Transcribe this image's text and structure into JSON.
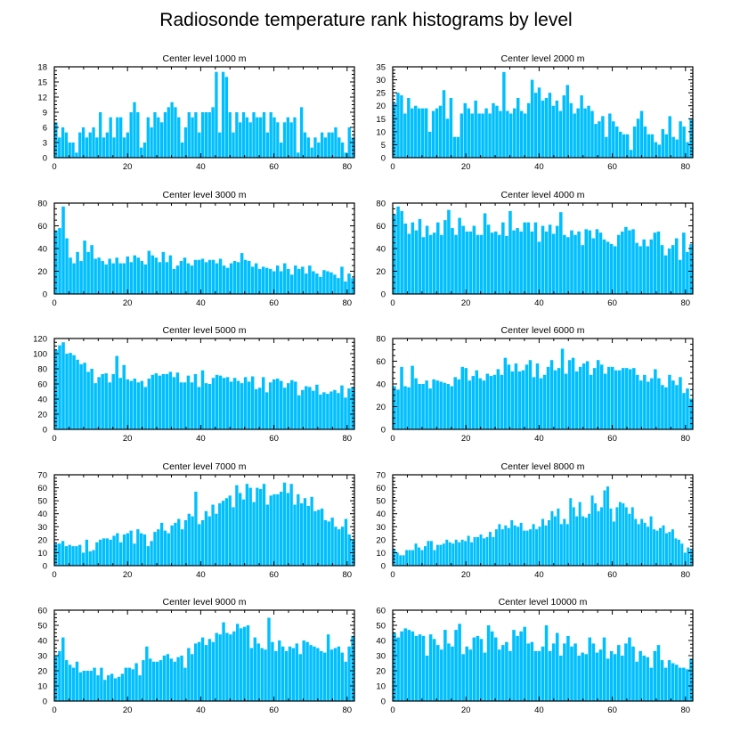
{
  "figure_title": "Radiosonde temperature rank histograms by level",
  "colors": {
    "bar_fill": "#00BFFF",
    "bar_edge": "#1a9fd6",
    "axis": "#000000",
    "background": "#ffffff"
  },
  "chart_data": [
    {
      "type": "bar",
      "title": "Center level 1000 m",
      "xlim": [
        0,
        82
      ],
      "ylim": [
        0,
        18
      ],
      "xticks": [
        0,
        20,
        40,
        60,
        80
      ],
      "yticks": [
        0,
        3,
        6,
        9,
        12,
        15,
        18
      ],
      "values": [
        7,
        4,
        6,
        5,
        3,
        3,
        1,
        5,
        6,
        4,
        5,
        6,
        4,
        9,
        4,
        5,
        8,
        4,
        8,
        8,
        4,
        5,
        9,
        11,
        9,
        2,
        3,
        8,
        6,
        9,
        8,
        7,
        9,
        10,
        11,
        10,
        8,
        3,
        6,
        9,
        8,
        9,
        5,
        9,
        9,
        9,
        10,
        17,
        5,
        17,
        16,
        9,
        5,
        9,
        7,
        9,
        8,
        7,
        9,
        8,
        8,
        9,
        5,
        9,
        8,
        7,
        3,
        7,
        8,
        7,
        8,
        1,
        10,
        5,
        4,
        2,
        4,
        3,
        5,
        4,
        5,
        5,
        6,
        4,
        3,
        1,
        6,
        4
      ],
      "xlabel": "",
      "ylabel": ""
    },
    {
      "type": "bar",
      "title": "Center level 2000 m",
      "xlim": [
        0,
        82
      ],
      "ylim": [
        0,
        35
      ],
      "xticks": [
        0,
        20,
        40,
        60,
        80
      ],
      "yticks": [
        0,
        5,
        10,
        15,
        20,
        25,
        30,
        35
      ],
      "values": [
        21,
        25,
        24,
        17,
        23,
        19,
        20,
        19,
        19,
        19,
        10,
        18,
        19,
        20,
        26,
        15,
        23,
        8,
        8,
        17,
        21,
        19,
        17,
        22,
        17,
        17,
        19,
        17,
        21,
        20,
        18,
        33,
        18,
        17,
        19,
        23,
        18,
        17,
        21,
        30,
        25,
        27,
        22,
        23,
        25,
        20,
        22,
        18,
        24,
        28,
        21,
        17,
        19,
        24,
        19,
        20,
        18,
        13,
        14,
        16,
        8,
        17,
        14,
        12,
        10,
        9,
        9,
        3,
        12,
        15,
        18,
        12,
        9,
        9,
        6,
        5,
        11,
        9,
        16,
        8,
        7,
        14,
        12,
        6,
        15
      ],
      "xlabel": "",
      "ylabel": ""
    },
    {
      "type": "bar",
      "title": "Center level 3000 m",
      "xlim": [
        0,
        82
      ],
      "ylim": [
        0,
        80
      ],
      "xticks": [
        0,
        20,
        40,
        60,
        80
      ],
      "yticks": [
        0,
        20,
        40,
        60,
        80
      ],
      "values": [
        56,
        58,
        77,
        49,
        32,
        27,
        37,
        29,
        47,
        37,
        43,
        31,
        32,
        29,
        26,
        31,
        27,
        32,
        27,
        27,
        33,
        28,
        34,
        32,
        29,
        26,
        38,
        34,
        32,
        28,
        37,
        28,
        34,
        22,
        25,
        29,
        32,
        27,
        25,
        30,
        30,
        31,
        28,
        30,
        30,
        27,
        31,
        25,
        23,
        27,
        29,
        28,
        36,
        30,
        29,
        24,
        27,
        22,
        24,
        23,
        22,
        20,
        25,
        20,
        27,
        22,
        17,
        25,
        22,
        24,
        18,
        25,
        20,
        18,
        15,
        21,
        20,
        19,
        17,
        14,
        24,
        11,
        18,
        14
      ],
      "xlabel": "",
      "ylabel": ""
    },
    {
      "type": "bar",
      "title": "Center level 4000 m",
      "xlim": [
        0,
        82
      ],
      "ylim": [
        0,
        80
      ],
      "xticks": [
        0,
        20,
        40,
        60,
        80
      ],
      "yticks": [
        0,
        20,
        40,
        60,
        80
      ],
      "values": [
        70,
        77,
        73,
        62,
        53,
        63,
        56,
        66,
        50,
        60,
        52,
        54,
        63,
        52,
        65,
        74,
        58,
        52,
        67,
        60,
        55,
        55,
        60,
        52,
        52,
        71,
        61,
        54,
        55,
        52,
        63,
        51,
        73,
        56,
        58,
        55,
        63,
        63,
        55,
        63,
        46,
        60,
        55,
        61,
        53,
        60,
        72,
        52,
        50,
        56,
        52,
        55,
        43,
        57,
        56,
        49,
        57,
        54,
        48,
        46,
        44,
        42,
        52,
        55,
        59,
        56,
        57,
        45,
        42,
        48,
        42,
        48,
        54,
        55,
        43,
        34,
        40,
        43,
        49,
        30,
        54,
        37,
        44
      ],
      "xlabel": "",
      "ylabel": ""
    },
    {
      "type": "bar",
      "title": "Center level 5000 m",
      "xlim": [
        0,
        82
      ],
      "ylim": [
        0,
        120
      ],
      "xticks": [
        0,
        20,
        40,
        60,
        80
      ],
      "yticks": [
        0,
        20,
        40,
        60,
        80,
        100,
        120
      ],
      "values": [
        105,
        111,
        115,
        100,
        101,
        98,
        92,
        86,
        88,
        76,
        80,
        61,
        69,
        73,
        74,
        62,
        73,
        97,
        68,
        85,
        66,
        64,
        67,
        62,
        64,
        56,
        67,
        72,
        74,
        71,
        73,
        73,
        76,
        69,
        75,
        62,
        62,
        71,
        62,
        73,
        56,
        78,
        61,
        60,
        68,
        72,
        71,
        68,
        69,
        63,
        68,
        64,
        61,
        69,
        63,
        70,
        53,
        55,
        69,
        49,
        62,
        66,
        67,
        64,
        55,
        61,
        65,
        63,
        45,
        52,
        57,
        56,
        51,
        59,
        46,
        49,
        47,
        50,
        52,
        48,
        58,
        42,
        54,
        56
      ],
      "xlabel": "",
      "ylabel": ""
    },
    {
      "type": "bar",
      "title": "Center level 6000 m",
      "xlim": [
        0,
        82
      ],
      "ylim": [
        0,
        80
      ],
      "xticks": [
        0,
        20,
        40,
        60,
        80
      ],
      "yticks": [
        0,
        20,
        40,
        60,
        80
      ],
      "values": [
        38,
        35,
        55,
        38,
        37,
        56,
        45,
        40,
        40,
        43,
        36,
        44,
        43,
        42,
        41,
        40,
        38,
        46,
        44,
        55,
        54,
        43,
        47,
        52,
        45,
        43,
        49,
        47,
        48,
        53,
        48,
        63,
        57,
        51,
        58,
        51,
        52,
        57,
        61,
        46,
        58,
        45,
        48,
        55,
        61,
        52,
        54,
        71,
        49,
        61,
        63,
        51,
        55,
        58,
        60,
        48,
        54,
        61,
        57,
        49,
        55,
        55,
        52,
        52,
        54,
        54,
        53,
        54,
        48,
        43,
        48,
        42,
        45,
        53,
        45,
        39,
        37,
        48,
        43,
        39,
        46,
        32,
        36,
        27
      ],
      "xlabel": "",
      "ylabel": ""
    },
    {
      "type": "bar",
      "title": "Center level 7000 m",
      "xlim": [
        0,
        82
      ],
      "ylim": [
        0,
        70
      ],
      "xticks": [
        0,
        20,
        40,
        60,
        80
      ],
      "yticks": [
        0,
        10,
        20,
        30,
        40,
        50,
        60,
        70
      ],
      "values": [
        17,
        17,
        19,
        15,
        16,
        15,
        15,
        16,
        10,
        20,
        11,
        12,
        18,
        20,
        21,
        21,
        20,
        23,
        25,
        18,
        24,
        25,
        27,
        17,
        28,
        25,
        24,
        15,
        19,
        26,
        28,
        33,
        27,
        25,
        31,
        33,
        36,
        28,
        35,
        40,
        38,
        57,
        32,
        35,
        42,
        38,
        47,
        40,
        48,
        50,
        52,
        54,
        45,
        62,
        56,
        51,
        63,
        60,
        49,
        60,
        59,
        63,
        47,
        54,
        55,
        55,
        57,
        64,
        56,
        63,
        47,
        55,
        48,
        52,
        46,
        53,
        42,
        43,
        44,
        35,
        34,
        37,
        30,
        28,
        30,
        36,
        24,
        20
      ],
      "xlabel": "",
      "ylabel": ""
    },
    {
      "type": "bar",
      "title": "Center level 8000 m",
      "xlim": [
        0,
        82
      ],
      "ylim": [
        0,
        70
      ],
      "xticks": [
        0,
        20,
        40,
        60,
        80
      ],
      "yticks": [
        0,
        10,
        20,
        30,
        40,
        50,
        60,
        70
      ],
      "values": [
        13,
        10,
        8,
        8,
        12,
        12,
        12,
        17,
        14,
        12,
        15,
        19,
        19,
        12,
        16,
        16,
        17,
        20,
        18,
        17,
        20,
        18,
        20,
        19,
        23,
        18,
        22,
        22,
        24,
        21,
        22,
        26,
        22,
        28,
        32,
        28,
        31,
        29,
        35,
        31,
        30,
        33,
        27,
        27,
        28,
        32,
        28,
        30,
        36,
        31,
        35,
        42,
        38,
        44,
        32,
        36,
        32,
        52,
        45,
        38,
        49,
        38,
        37,
        40,
        54,
        48,
        42,
        45,
        58,
        61,
        44,
        34,
        45,
        49,
        48,
        45,
        40,
        45,
        36,
        32,
        36,
        33,
        30,
        38,
        28,
        27,
        29,
        31,
        25,
        26,
        28,
        21,
        20,
        17,
        10,
        14,
        12
      ],
      "xlabel": "",
      "ylabel": ""
    },
    {
      "type": "bar",
      "title": "Center level 9000 m",
      "xlim": [
        0,
        82
      ],
      "ylim": [
        0,
        60
      ],
      "xticks": [
        0,
        20,
        40,
        60,
        80
      ],
      "yticks": [
        0,
        10,
        20,
        30,
        40,
        50,
        60
      ],
      "values": [
        30,
        33,
        42,
        27,
        24,
        22,
        26,
        19,
        20,
        20,
        20,
        22,
        17,
        22,
        14,
        17,
        18,
        15,
        16,
        18,
        22,
        22,
        21,
        25,
        17,
        27,
        36,
        28,
        26,
        26,
        27,
        30,
        31,
        28,
        26,
        29,
        30,
        22,
        35,
        31,
        38,
        39,
        42,
        37,
        41,
        39,
        45,
        44,
        52,
        45,
        44,
        46,
        51,
        48,
        49,
        50,
        35,
        42,
        38,
        35,
        34,
        55,
        39,
        33,
        40,
        36,
        33,
        36,
        35,
        38,
        31,
        40,
        39,
        37,
        36,
        35,
        33,
        32,
        44,
        34,
        35,
        36,
        32,
        26,
        36,
        43
      ],
      "xlabel": "",
      "ylabel": ""
    },
    {
      "type": "bar",
      "title": "Center level 10000 m",
      "xlim": [
        0,
        82
      ],
      "ylim": [
        0,
        60
      ],
      "xticks": [
        0,
        20,
        40,
        60,
        80
      ],
      "yticks": [
        0,
        10,
        20,
        30,
        40,
        50,
        60
      ],
      "values": [
        45,
        42,
        46,
        48,
        47,
        46,
        43,
        44,
        43,
        30,
        44,
        41,
        37,
        34,
        47,
        38,
        36,
        47,
        51,
        31,
        36,
        34,
        42,
        43,
        41,
        32,
        50,
        46,
        42,
        34,
        37,
        39,
        33,
        47,
        43,
        46,
        49,
        38,
        39,
        33,
        33,
        36,
        50,
        33,
        38,
        45,
        30,
        38,
        43,
        36,
        38,
        30,
        32,
        31,
        42,
        38,
        32,
        34,
        42,
        28,
        33,
        31,
        37,
        30,
        38,
        42,
        36,
        26,
        33,
        30,
        29,
        22,
        33,
        37,
        27,
        22,
        27,
        25,
        24,
        22,
        22,
        21,
        28
      ],
      "xlabel": "",
      "ylabel": ""
    }
  ]
}
